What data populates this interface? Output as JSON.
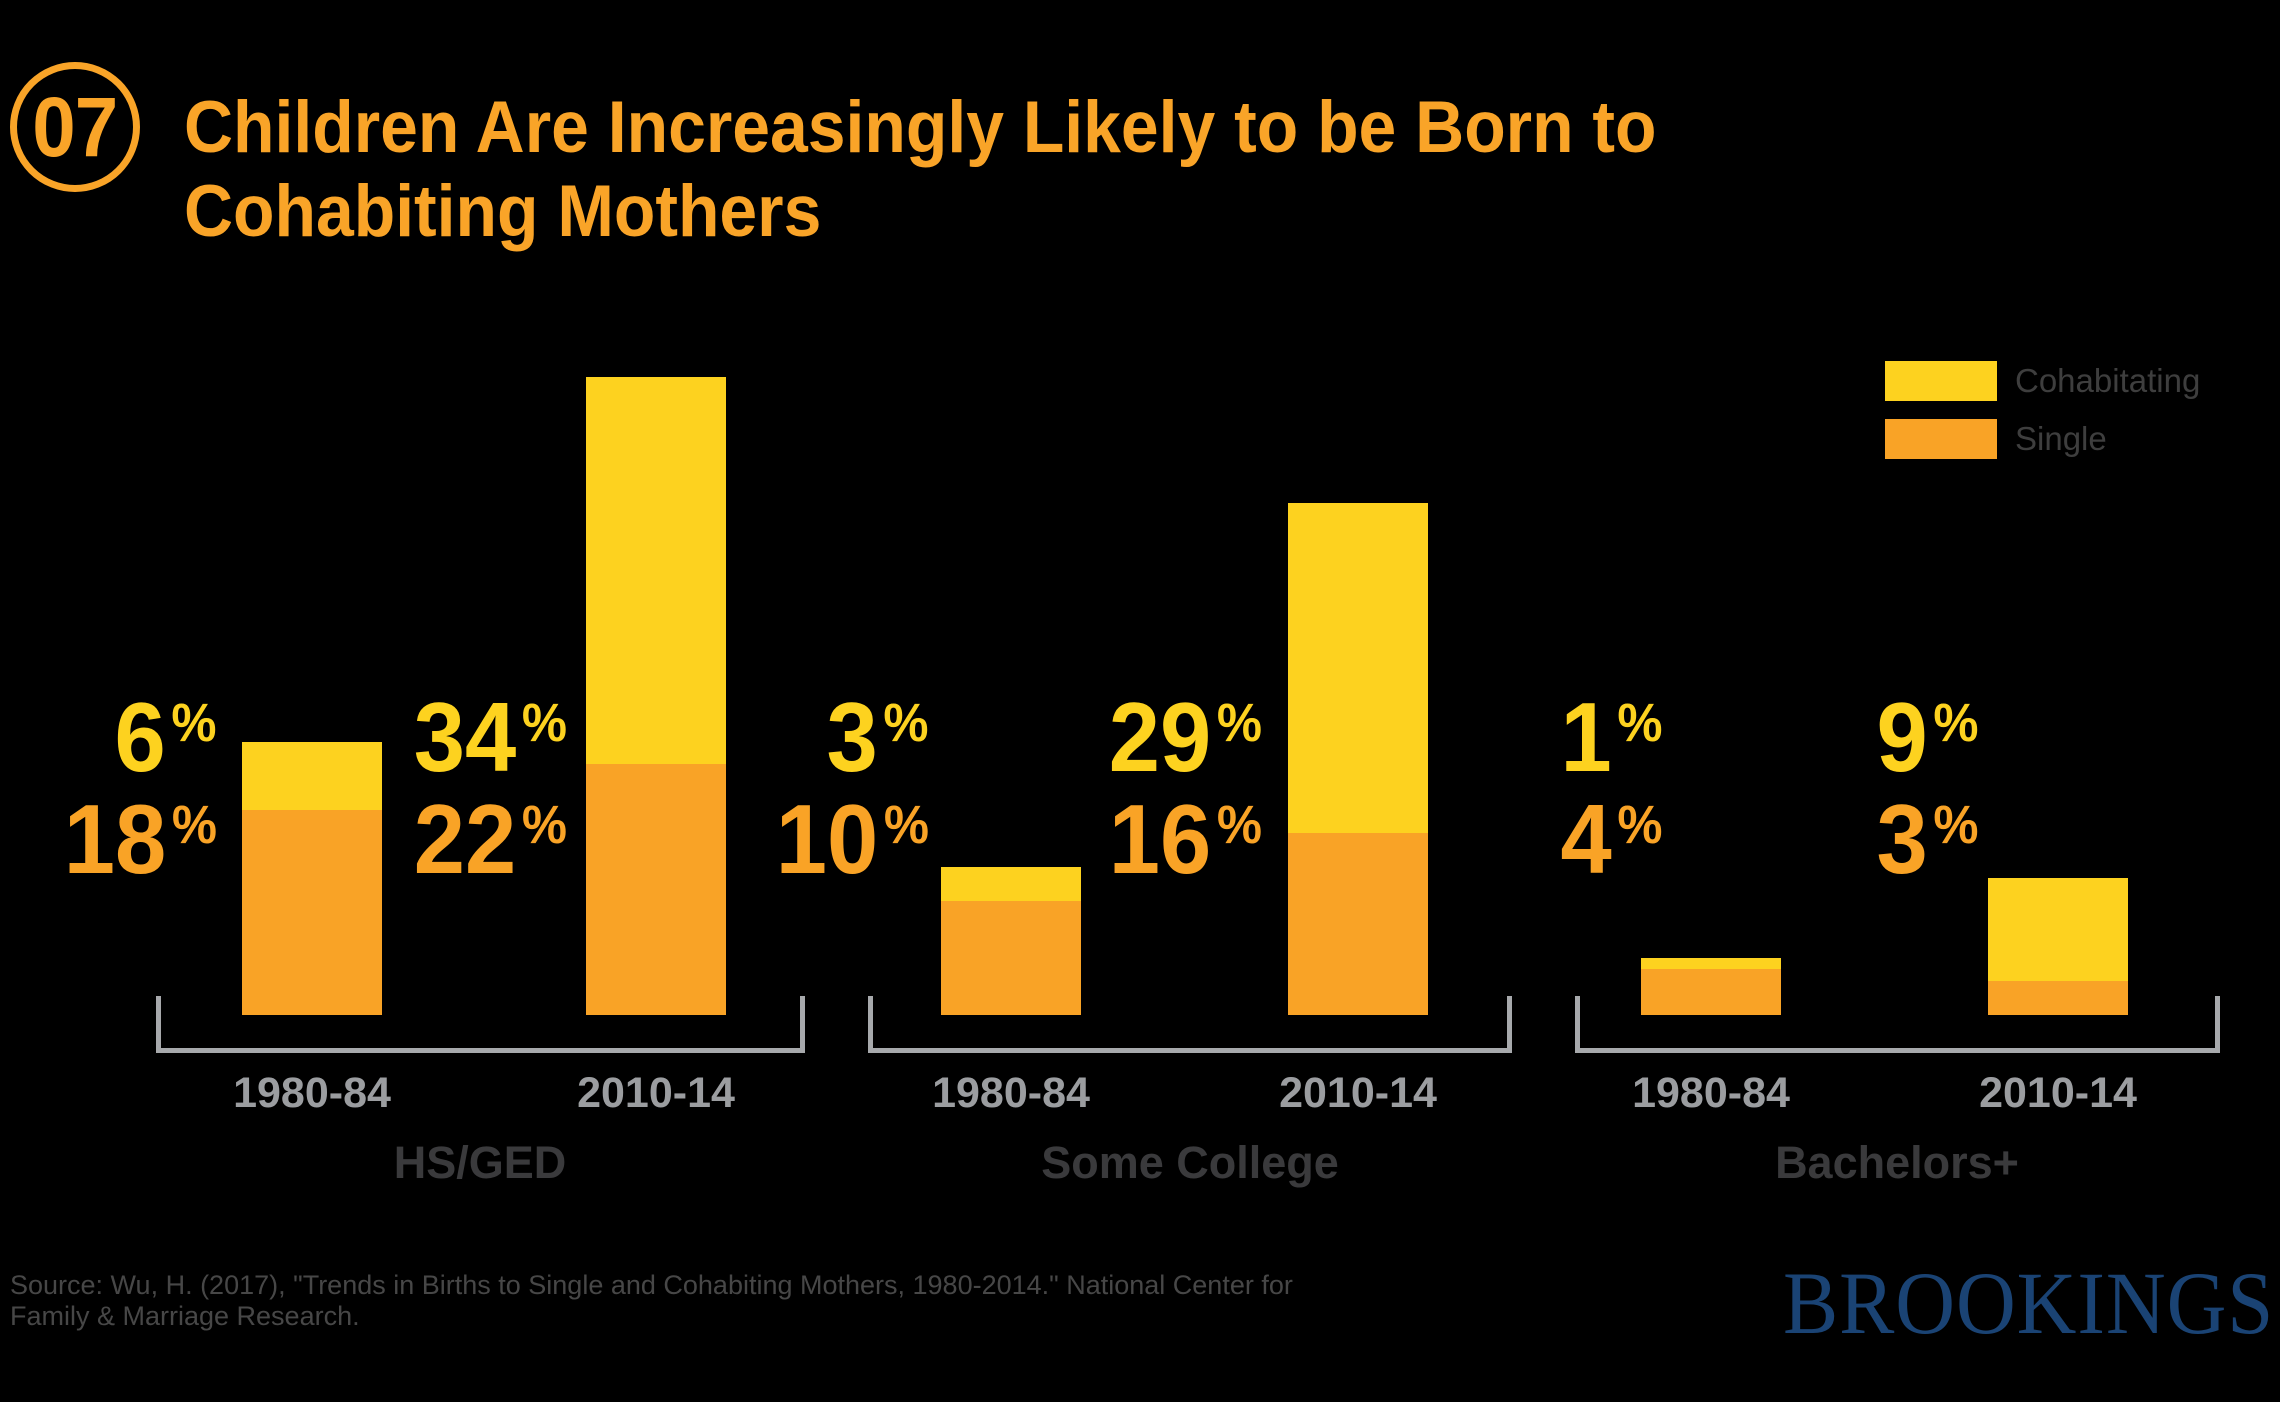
{
  "badge": {
    "number": "07"
  },
  "title": {
    "line1": "Children Are Increasingly Likely to be Born to",
    "line2": "Cohabiting Mothers",
    "color": "#F9A428"
  },
  "legend": {
    "items": [
      {
        "label": "Cohabitating",
        "color": "#FDD21F"
      },
      {
        "label": "Single",
        "color": "#F9A326"
      }
    ]
  },
  "chart_data": {
    "type": "bar",
    "stacked": true,
    "unit": "%",
    "series_names": [
      "Cohabitating",
      "Single"
    ],
    "colors": {
      "cohabitating": "#FDD21F",
      "single": "#F9A326"
    },
    "ylim": [
      0,
      56
    ],
    "grid": false,
    "legend_position": "top-right",
    "groups": [
      {
        "label": "HS/GED",
        "bars": [
          {
            "category": "1980-84",
            "cohabitating": 6,
            "single": 18
          },
          {
            "category": "2010-14",
            "cohabitating": 34,
            "single": 22
          }
        ]
      },
      {
        "label": "Some College",
        "bars": [
          {
            "category": "1980-84",
            "cohabitating": 3,
            "single": 10
          },
          {
            "category": "2010-14",
            "cohabitating": 29,
            "single": 16
          }
        ]
      },
      {
        "label": "Bachelors+",
        "bars": [
          {
            "category": "1980-84",
            "cohabitating": 1,
            "single": 4
          },
          {
            "category": "2010-14",
            "cohabitating": 9,
            "single": 3
          }
        ]
      }
    ]
  },
  "source": {
    "line1": "Source: Wu, H. (2017), \"Trends in Births to Single and Cohabiting Mothers, 1980-2014.\" National Center for",
    "line2": "Family & Marriage Research."
  },
  "logo": {
    "text": "BROOKINGS",
    "color": "#1A4374"
  }
}
